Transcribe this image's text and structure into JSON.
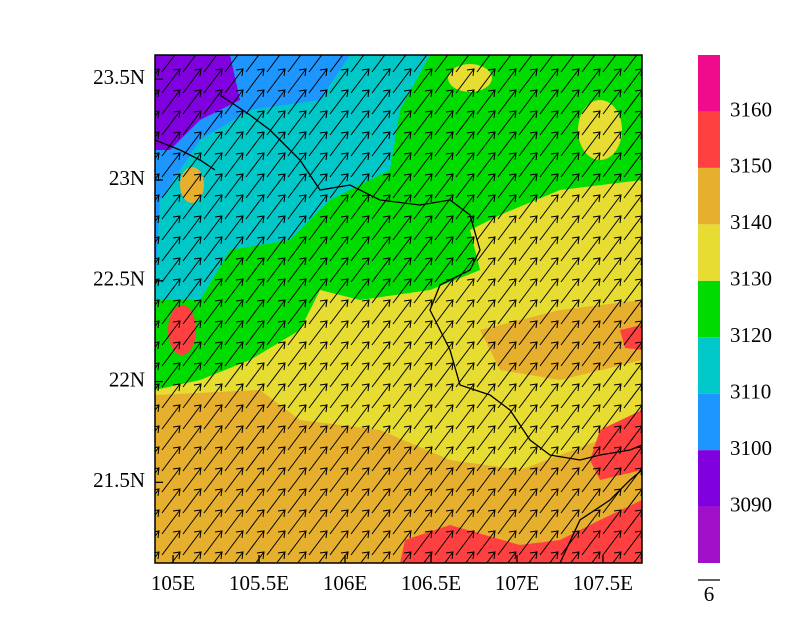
{
  "axes": {
    "xlim": [
      104.895,
      107.727
    ],
    "ylim": [
      21.1,
      23.62
    ],
    "xticks": [
      {
        "value": 105,
        "label": "105E"
      },
      {
        "value": 105.5,
        "label": "105.5E"
      },
      {
        "value": 106,
        "label": "106E"
      },
      {
        "value": 106.5,
        "label": "106.5E"
      },
      {
        "value": 107,
        "label": "107E"
      },
      {
        "value": 107.5,
        "label": "107.5E"
      }
    ],
    "yticks": [
      {
        "value": 21.5,
        "label": "21.5N"
      },
      {
        "value": 22,
        "label": "22N"
      },
      {
        "value": 22.5,
        "label": "22.5N"
      },
      {
        "value": 23,
        "label": "23N"
      },
      {
        "value": 23.5,
        "label": "23.5N"
      }
    ]
  },
  "colorbar": {
    "levels": [
      3090,
      3100,
      3110,
      3120,
      3130,
      3140,
      3150,
      3160
    ],
    "colors": [
      "#a010c8",
      "#8000e0",
      "#1e96ff",
      "#00c8c8",
      "#00dc00",
      "#e6dc32",
      "#e6af2d",
      "#ff4040",
      "#f00a8c"
    ]
  },
  "reference_vector": {
    "value": 6
  }
}
